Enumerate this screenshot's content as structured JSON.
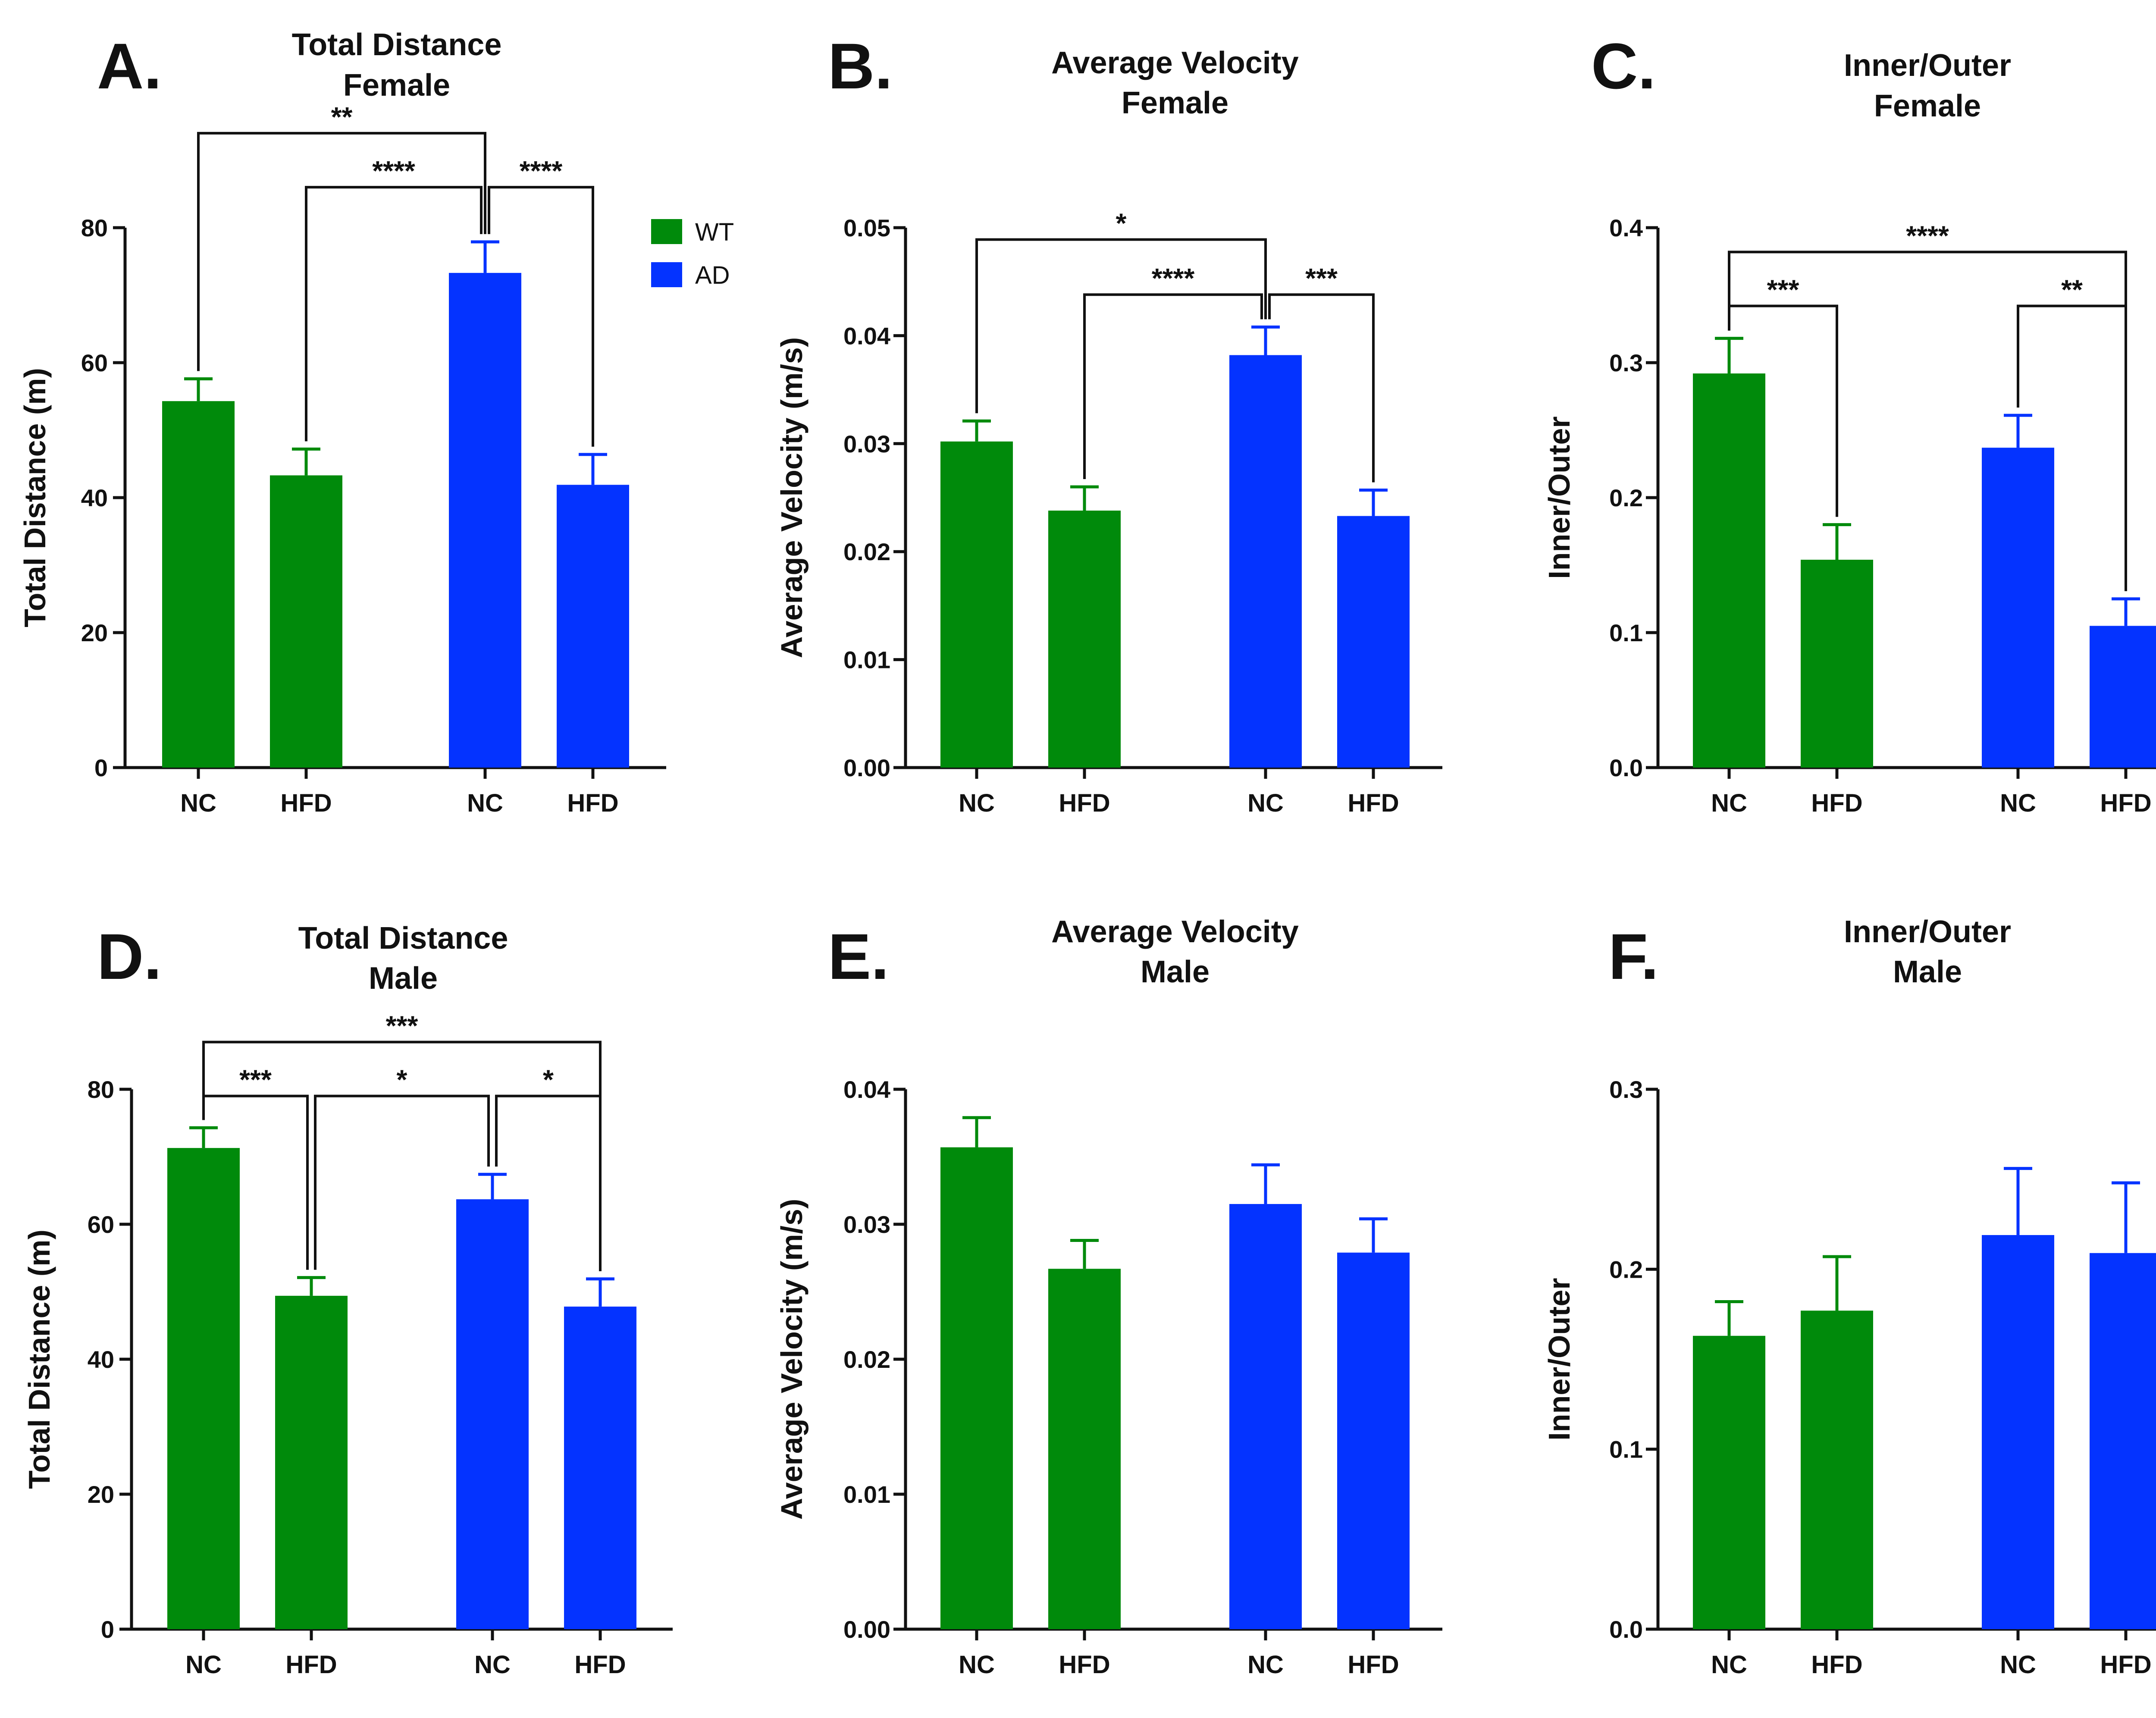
{
  "colors": {
    "WT": "#008a0b",
    "AD": "#0433ff",
    "axis": "#111111"
  },
  "legend": [
    {
      "group": "WT",
      "label": "WT"
    },
    {
      "group": "AD",
      "label": "AD"
    }
  ],
  "chart_data": [
    {
      "letter": "A.",
      "title": [
        "Total Distance",
        "Female"
      ],
      "type": "bar",
      "ylabel": "Total Distance (m)",
      "ylim": [
        0,
        80
      ],
      "yticks": [
        "0",
        "20",
        "40",
        "60",
        "80"
      ],
      "categories": [
        "NC",
        "HFD",
        "NC",
        "HFD"
      ],
      "groups": [
        "WT",
        "WT",
        "AD",
        "AD"
      ],
      "values": [
        54.3,
        43.3,
        73.3,
        41.9
      ],
      "errors": [
        3.3,
        3.9,
        4.6,
        4.5
      ],
      "significance": [
        {
          "from": 0,
          "to": 2,
          "label": "**",
          "level": 94
        },
        {
          "from": 1,
          "to": 2,
          "label": "****",
          "level": 86
        },
        {
          "from": 2,
          "to": 3,
          "label": "****",
          "level": 86
        }
      ]
    },
    {
      "letter": "B.",
      "title": [
        "Average Velocity",
        "Female"
      ],
      "type": "bar",
      "ylabel": "Average Velocity (m/s)",
      "ylim": [
        0,
        0.05
      ],
      "yticks": [
        "0.00",
        "0.01",
        "0.02",
        "0.03",
        "0.04",
        "0.05"
      ],
      "categories": [
        "NC",
        "HFD",
        "NC",
        "HFD"
      ],
      "groups": [
        "WT",
        "WT",
        "AD",
        "AD"
      ],
      "values": [
        0.0302,
        0.0238,
        0.0382,
        0.0233
      ],
      "errors": [
        0.0019,
        0.0022,
        0.0026,
        0.0024
      ],
      "significance": [
        {
          "from": 0,
          "to": 2,
          "label": "*",
          "level": 0.0489
        },
        {
          "from": 1,
          "to": 2,
          "label": "****",
          "level": 0.0438
        },
        {
          "from": 2,
          "to": 3,
          "label": "***",
          "level": 0.0438
        }
      ]
    },
    {
      "letter": "C.",
      "title": [
        "Inner/Outer",
        "Female"
      ],
      "type": "bar",
      "ylabel": "Inner/Outer",
      "ylim": [
        0,
        0.4
      ],
      "yticks": [
        "0.0",
        "0.1",
        "0.2",
        "0.3",
        "0.4"
      ],
      "categories": [
        "NC",
        "HFD",
        "NC",
        "HFD"
      ],
      "groups": [
        "WT",
        "WT",
        "AD",
        "AD"
      ],
      "values": [
        0.292,
        0.154,
        0.237,
        0.105
      ],
      "errors": [
        0.026,
        0.026,
        0.024,
        0.02
      ],
      "significance": [
        {
          "from": 0,
          "to": 3,
          "label": "****",
          "level": 0.382
        },
        {
          "from": 0,
          "to": 1,
          "label": "***",
          "level": 0.342
        },
        {
          "from": 2,
          "to": 3,
          "label": "**",
          "level": 0.342
        }
      ]
    },
    {
      "letter": "D.",
      "title": [
        "Total Distance",
        "Male"
      ],
      "type": "bar",
      "ylabel": "Total Distance (m)",
      "ylim": [
        0,
        80
      ],
      "yticks": [
        "0",
        "20",
        "40",
        "60",
        "80"
      ],
      "categories": [
        "NC",
        "HFD",
        "NC",
        "HFD"
      ],
      "groups": [
        "WT",
        "WT",
        "AD",
        "AD"
      ],
      "values": [
        71.3,
        49.4,
        63.7,
        47.8
      ],
      "errors": [
        3.0,
        2.7,
        3.7,
        4.1
      ],
      "significance": [
        {
          "from": 0,
          "to": 3,
          "label": "***",
          "level": 87
        },
        {
          "from": 0,
          "to": 1,
          "label": "***",
          "level": 79
        },
        {
          "from": 1,
          "to": 2,
          "label": "*",
          "level": 79
        },
        {
          "from": 2,
          "to": 3,
          "label": "*",
          "level": 79
        }
      ]
    },
    {
      "letter": "E.",
      "title": [
        "Average Velocity",
        "Male"
      ],
      "type": "bar",
      "ylabel": "Average Velocity (m/s)",
      "ylim": [
        0,
        0.04
      ],
      "yticks": [
        "0.00",
        "0.01",
        "0.02",
        "0.03",
        "0.04"
      ],
      "categories": [
        "NC",
        "HFD",
        "NC",
        "HFD"
      ],
      "groups": [
        "WT",
        "WT",
        "AD",
        "AD"
      ],
      "values": [
        0.0357,
        0.0267,
        0.0315,
        0.0279
      ],
      "errors": [
        0.0022,
        0.0021,
        0.0029,
        0.0025
      ],
      "significance": []
    },
    {
      "letter": "F.",
      "title": [
        "Inner/Outer",
        "Male"
      ],
      "type": "bar",
      "ylabel": "Inner/Outer",
      "ylim": [
        0,
        0.3
      ],
      "yticks": [
        "0.0",
        "0.1",
        "0.2",
        "0.3"
      ],
      "categories": [
        "NC",
        "HFD",
        "NC",
        "HFD"
      ],
      "groups": [
        "WT",
        "WT",
        "AD",
        "AD"
      ],
      "values": [
        0.163,
        0.177,
        0.219,
        0.209
      ],
      "errors": [
        0.019,
        0.03,
        0.037,
        0.039
      ],
      "significance": []
    }
  ]
}
